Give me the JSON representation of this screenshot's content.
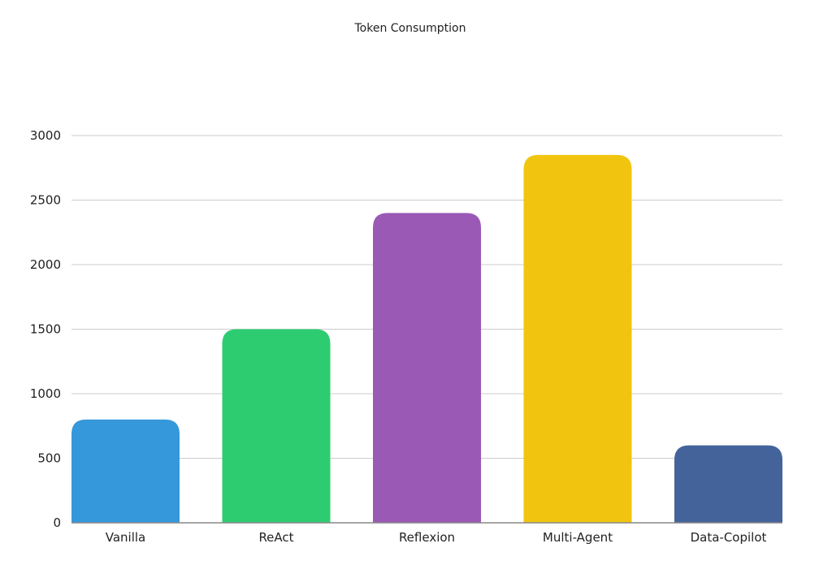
{
  "chart_data": {
    "type": "bar",
    "title": "Token Consumption",
    "xlabel": "",
    "ylabel": "",
    "categories": [
      "Vanilla",
      "ReAct",
      "Reflexion",
      "Multi-Agent",
      "Data-Copilot"
    ],
    "values": [
      800,
      1500,
      2400,
      2850,
      600
    ],
    "colors": [
      "#3598db",
      "#2ecc71",
      "#9b59b6",
      "#f1c40f",
      "#44639b"
    ],
    "ylim": [
      0,
      3000
    ],
    "yticks": [
      0,
      500,
      1000,
      1500,
      2000,
      2500,
      3000
    ],
    "grid": true,
    "legend": "none"
  }
}
